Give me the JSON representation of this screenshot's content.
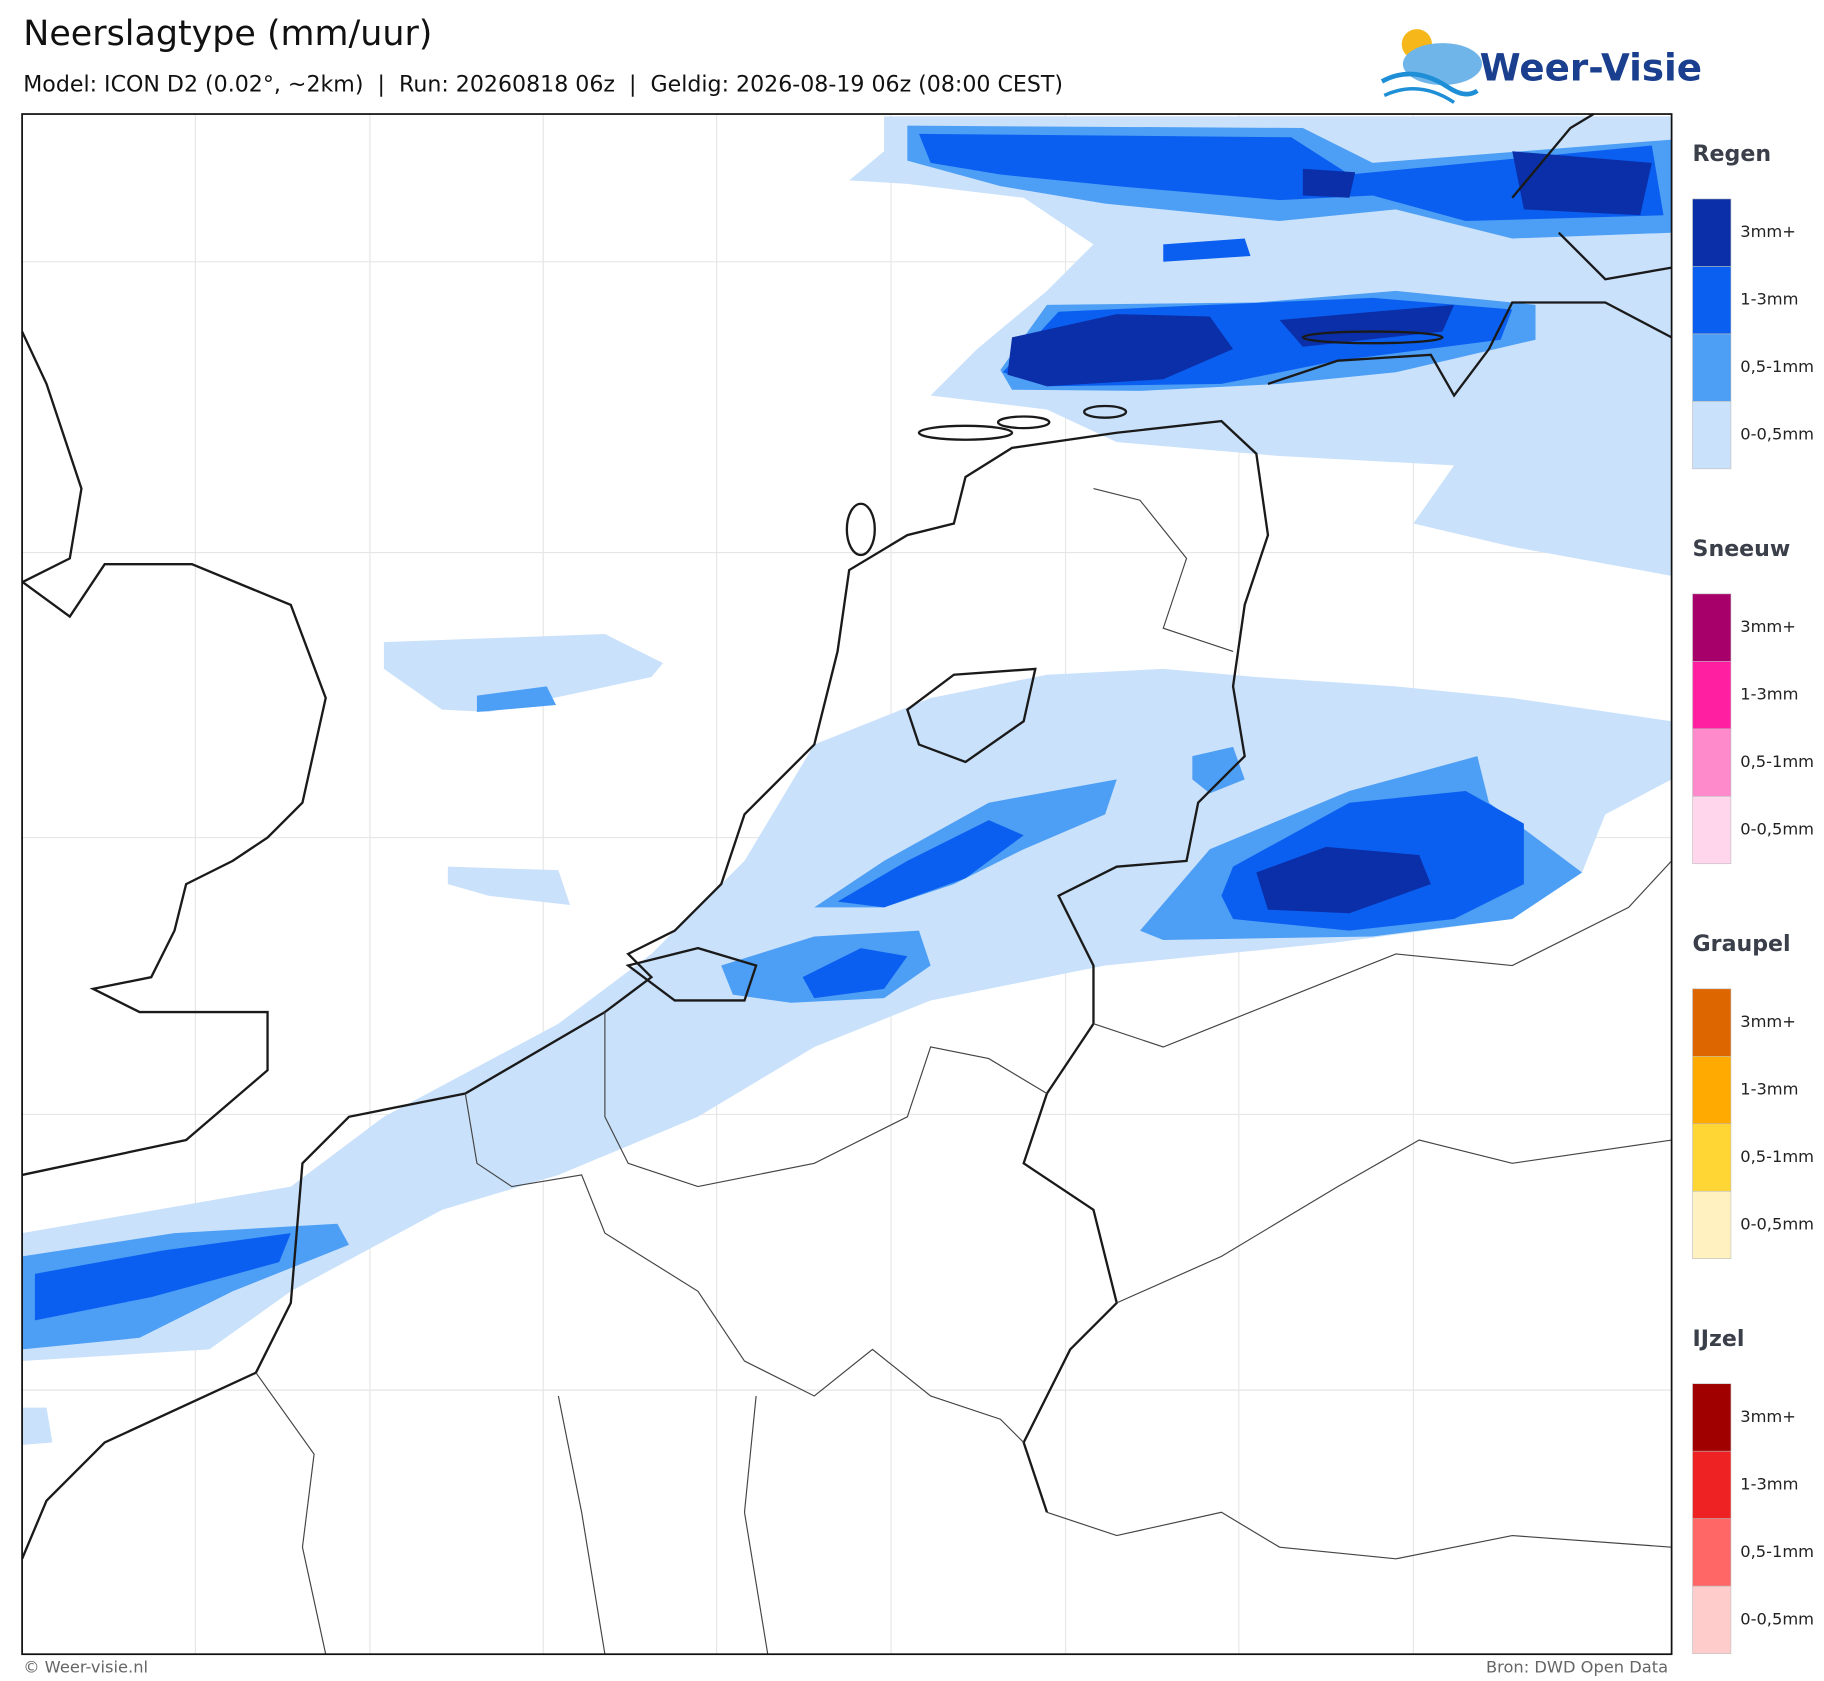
{
  "header": {
    "title": "Neerslagtype (mm/uur)",
    "subtitle": "Model: ICON D2 (0.02°, ~2km)  |  Run: 20260818 06z  |  Geldig: 2026-08-19 06z (08:00 CEST)"
  },
  "logo": {
    "text": "Weer-Visie"
  },
  "legend": [
    {
      "title": "Regen",
      "items": [
        {
          "label": "3mm+",
          "color": "#0a2fa8"
        },
        {
          "label": "1-3mm",
          "color": "#0a5ff0"
        },
        {
          "label": "0,5-1mm",
          "color": "#4d9ef5"
        },
        {
          "label": "0-0,5mm",
          "color": "#c9e1fb"
        }
      ]
    },
    {
      "title": "Sneeuw",
      "items": [
        {
          "label": "3mm+",
          "color": "#a8006a"
        },
        {
          "label": "1-3mm",
          "color": "#ff1fa0"
        },
        {
          "label": "0,5-1mm",
          "color": "#ff8acb"
        },
        {
          "label": "0-0,5mm",
          "color": "#ffd6ec"
        }
      ]
    },
    {
      "title": "Graupel",
      "items": [
        {
          "label": "3mm+",
          "color": "#dd6600"
        },
        {
          "label": "1-3mm",
          "color": "#ffaa00"
        },
        {
          "label": "0,5-1mm",
          "color": "#ffd633"
        },
        {
          "label": "0-0,5mm",
          "color": "#fff2c0"
        }
      ]
    },
    {
      "title": "IJzel",
      "items": [
        {
          "label": "3mm+",
          "color": "#a00000"
        },
        {
          "label": "1-3mm",
          "color": "#ee2222"
        },
        {
          "label": "0,5-1mm",
          "color": "#ff6666"
        },
        {
          "label": "0-0,5mm",
          "color": "#ffcccc"
        }
      ]
    }
  ],
  "footer": {
    "copyright": "© Weer-visie.nl",
    "source": "Bron: DWD Open Data"
  }
}
